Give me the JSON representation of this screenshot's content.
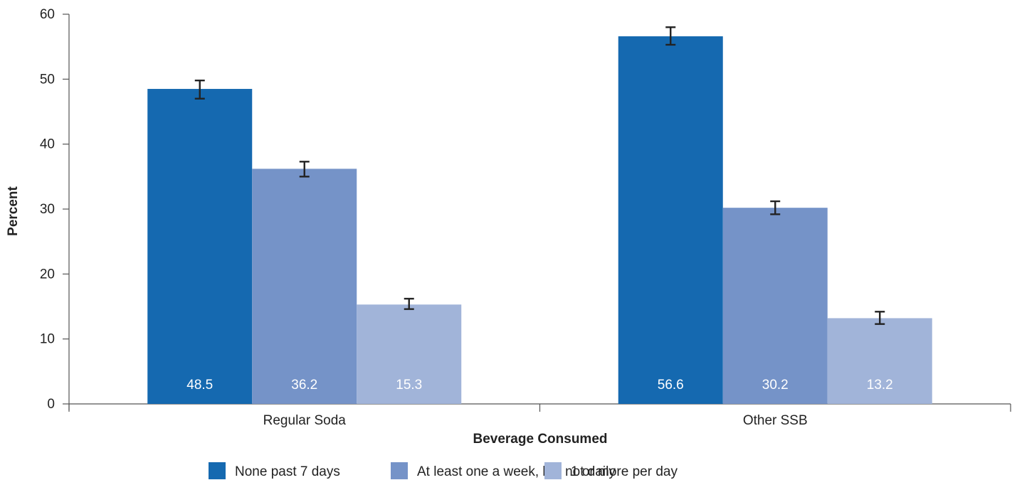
{
  "chart_data": {
    "type": "bar",
    "categories": [
      "Regular Soda",
      "Other SSB"
    ],
    "series": [
      {
        "name": "None past 7 days",
        "color": "#1569b0",
        "values": [
          48.5,
          56.6
        ],
        "ci": [
          [
            47.0,
            49.8
          ],
          [
            55.3,
            58.0
          ]
        ],
        "labels": [
          "48.5",
          "56.6"
        ]
      },
      {
        "name": "At least one a week, but not daily",
        "color": "#7593c8",
        "values": [
          36.2,
          30.2
        ],
        "ci": [
          [
            35.0,
            37.3
          ],
          [
            29.2,
            31.2
          ]
        ],
        "labels": [
          "36.2",
          "30.2"
        ]
      },
      {
        "name": "1 or more per day",
        "color": "#a1b4d9",
        "values": [
          15.3,
          13.2
        ],
        "ci": [
          [
            14.6,
            16.2
          ],
          [
            12.3,
            14.2
          ]
        ],
        "labels": [
          "15.3",
          "13.2"
        ]
      }
    ],
    "xlabel": "Beverage Consumed",
    "ylabel": "Percent",
    "ylim": [
      0,
      60
    ],
    "yticks": [
      0,
      10,
      20,
      30,
      40,
      50,
      60
    ],
    "ytick_labels": [
      "0",
      "10",
      "20",
      "30",
      "40",
      "50",
      "60"
    ],
    "grid": false,
    "legend_position": "bottom"
  }
}
